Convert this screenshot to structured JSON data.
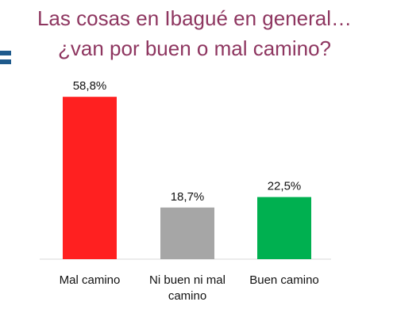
{
  "chart_data": {
    "type": "bar",
    "title_lines": [
      "Las cosas en Ibagué en general…",
      "¿van por buen o mal camino?"
    ],
    "categories": [
      [
        "Mal camino"
      ],
      [
        "Ni buen ni mal",
        "camino"
      ],
      [
        "Buen camino"
      ]
    ],
    "values": [
      58.8,
      18.7,
      22.5
    ],
    "value_labels": [
      "58,8%",
      "18,7%",
      "22,5%"
    ],
    "bar_colors": [
      "#ff2020",
      "#a6a6a6",
      "#00b050"
    ],
    "ylim": [
      0,
      60
    ],
    "xlabel": "",
    "ylabel": "",
    "grid": false
  },
  "colors": {
    "title": "#8e3660",
    "axis": "#d9d9d9",
    "brand_mark": "#1e5a8c"
  },
  "logo": {
    "icon": "partial-logo-mark-icon"
  }
}
